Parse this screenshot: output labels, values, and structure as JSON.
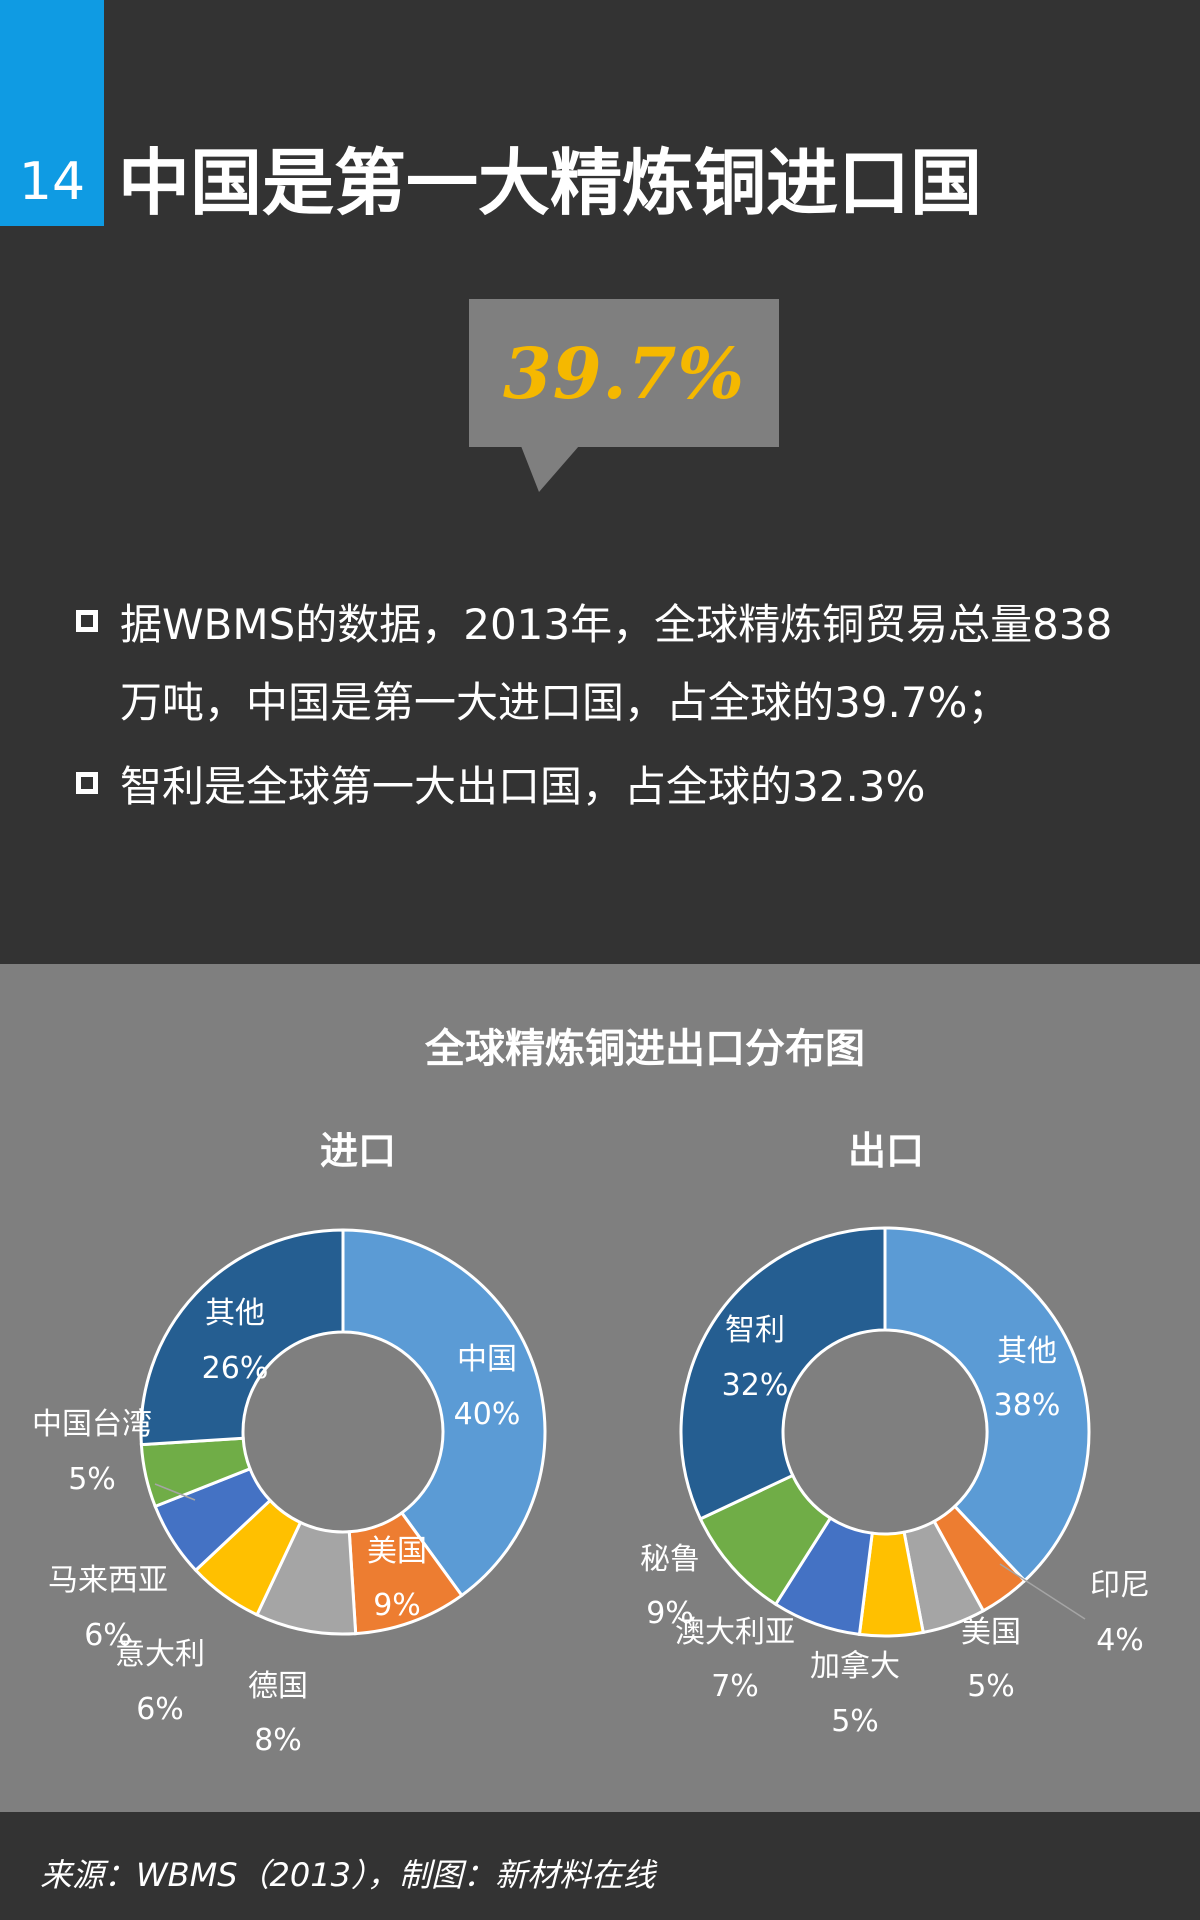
{
  "page_number": "14",
  "headline": "中国是第一大精炼铜进口国",
  "callout_value": "39.7%",
  "bullets": [
    {
      "text": "据WBMS的数据，2013年，全球精炼铜贸易总量838万吨，中国是第一大进口国，占全球的39.7%；"
    },
    {
      "text": "智利是全球第一大出口国，占全球的32.3%"
    }
  ],
  "chart_title": "全球精炼铜进出口分布图",
  "source": "来源：WBMS（2013），制图：新材料在线",
  "colors": {
    "accent": "#0f9be3",
    "highlight": "#f5b800",
    "dark_bg": "#333333",
    "panel_bg": "#7f7f7f"
  },
  "chart_data": [
    {
      "type": "pie",
      "title": "进口",
      "categories": [
        "中国",
        "美国",
        "德国",
        "意大利",
        "马来西亚",
        "中国台湾",
        "其他"
      ],
      "values": [
        40,
        9,
        8,
        6,
        6,
        5,
        26
      ],
      "value_labels": [
        "40%",
        "9%",
        "8%",
        "6%",
        "6%",
        "5%",
        "26%"
      ],
      "colors": [
        "#5b9bd5",
        "#ed7d31",
        "#a5a5a5",
        "#ffc000",
        "#4472c4",
        "#70ad47",
        "#255e91"
      ]
    },
    {
      "type": "pie",
      "title": "出口",
      "categories": [
        "其他",
        "印尼",
        "美国",
        "加拿大",
        "澳大利亚",
        "秘鲁",
        "智利"
      ],
      "values": [
        38,
        4,
        5,
        5,
        7,
        9,
        32
      ],
      "value_labels": [
        "38%",
        "4%",
        "5%",
        "5%",
        "7%",
        "9%",
        "32%"
      ],
      "colors": [
        "#5b9bd5",
        "#ed7d31",
        "#a5a5a5",
        "#ffc000",
        "#4472c4",
        "#70ad47",
        "#255e91"
      ]
    }
  ]
}
